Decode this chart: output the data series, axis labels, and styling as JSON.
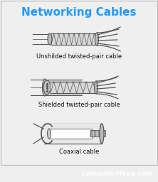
{
  "title": "Networking Cables",
  "title_color": "#2299ff",
  "title_fontsize": 11,
  "bg_color": "#efefef",
  "footer_text": "ComputerHope.com",
  "footer_bg": "#111111",
  "footer_color": "#ffffff",
  "footer_fontsize": 6.5,
  "labels": [
    "Unshilded twisted-pair cable",
    "Shielded twisted-pair cable",
    "Coaxial cable"
  ],
  "label_fontsize": 6.0,
  "label_color": "#111111",
  "line_color": "#555555",
  "fill_light": "#e0e0e0",
  "fill_mid": "#bbbbbb",
  "fill_dark": "#888888",
  "fill_white": "#ffffff"
}
